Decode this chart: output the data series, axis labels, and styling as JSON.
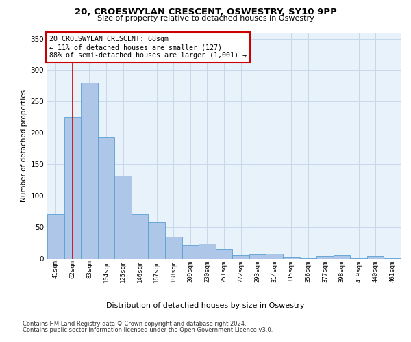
{
  "title": "20, CROESWYLAN CRESCENT, OSWESTRY, SY10 9PP",
  "subtitle": "Size of property relative to detached houses in Oswestry",
  "xlabel_bottom": "Distribution of detached houses by size in Oswestry",
  "ylabel": "Number of detached properties",
  "categories": [
    "41sqm",
    "62sqm",
    "83sqm",
    "104sqm",
    "125sqm",
    "146sqm",
    "167sqm",
    "188sqm",
    "209sqm",
    "230sqm",
    "251sqm",
    "272sqm",
    "293sqm",
    "314sqm",
    "335sqm",
    "356sqm",
    "377sqm",
    "398sqm",
    "419sqm",
    "440sqm",
    "461sqm"
  ],
  "values": [
    70,
    225,
    280,
    193,
    132,
    70,
    57,
    34,
    21,
    24,
    15,
    5,
    6,
    7,
    2,
    1,
    4,
    5,
    1,
    4,
    1
  ],
  "bar_color": "#aec6e8",
  "bar_edge_color": "#5a9fd4",
  "grid_color": "#c8d8ea",
  "background_color": "#e8f2fb",
  "annotation_box": {
    "text_line1": "20 CROESWYLAN CRESCENT: 68sqm",
    "text_line2": "← 11% of detached houses are smaller (127)",
    "text_line3": "88% of semi-detached houses are larger (1,001) →",
    "box_color": "#ffffff",
    "border_color": "#cc0000"
  },
  "vline_x": 1,
  "vline_color": "#cc0000",
  "ylim": [
    0,
    360
  ],
  "yticks": [
    0,
    50,
    100,
    150,
    200,
    250,
    300,
    350
  ],
  "footnote_line1": "Contains HM Land Registry data © Crown copyright and database right 2024.",
  "footnote_line2": "Contains public sector information licensed under the Open Government Licence v3.0."
}
